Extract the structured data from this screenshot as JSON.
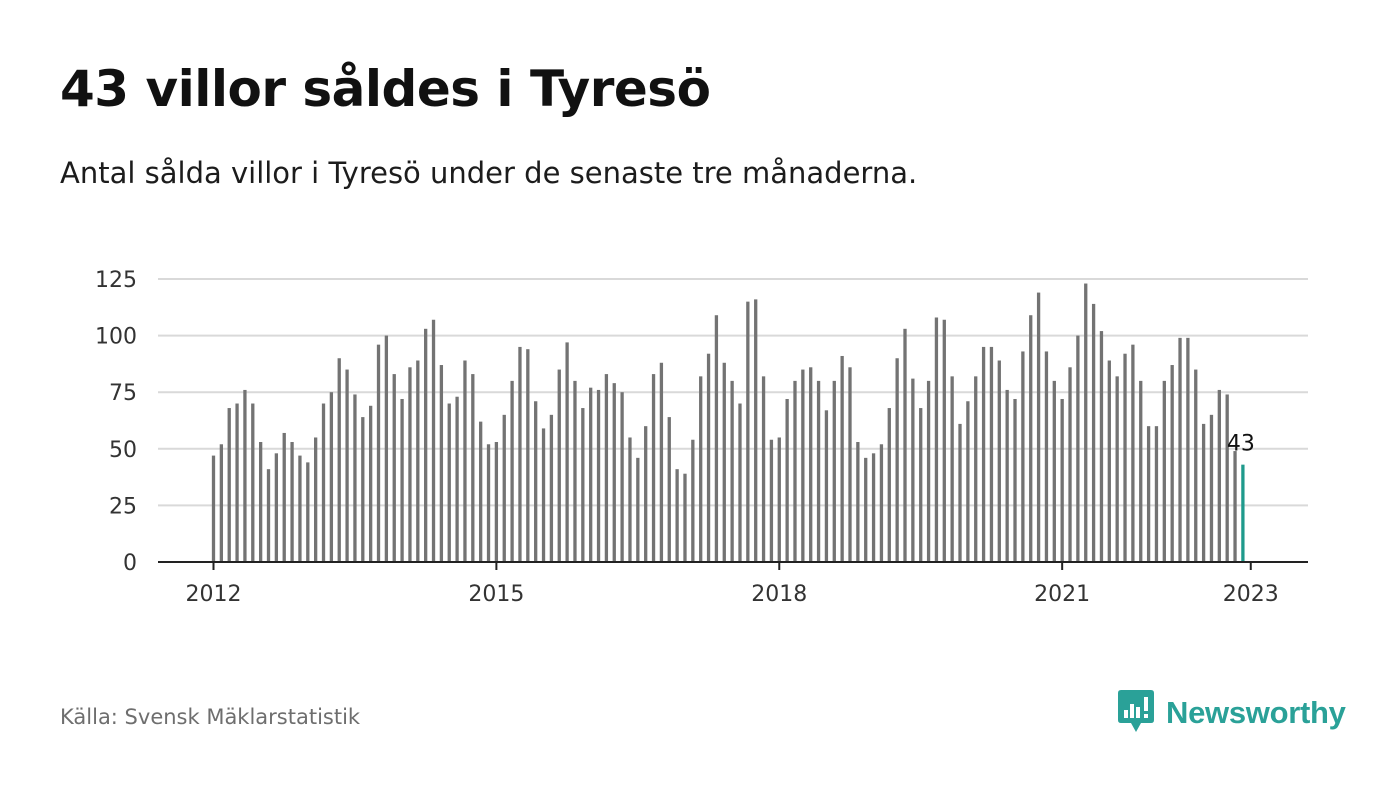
{
  "title": "43 villor såldes i Tyresö",
  "subtitle": "Antal sålda villor i Tyresö under de senaste tre månaderna.",
  "source": "Källa: Svensk Mäklarstatistik",
  "brand": {
    "name": "Newsworthy",
    "icon": "newsworthy-logo-icon",
    "color": "#2aa198"
  },
  "colors": {
    "bar": "#737373",
    "highlight": "#1f9a8c",
    "grid": "#d9d9d9",
    "axis": "#222222"
  },
  "chart_data": {
    "type": "bar",
    "title": "43 villor såldes i Tyresö",
    "subtitle": "Antal sålda villor i Tyresö under de senaste tre månaderna.",
    "xlabel": "",
    "ylabel": "",
    "start": "2012-01",
    "frequency": "monthly",
    "ylim": [
      0,
      125
    ],
    "yticks": [
      0,
      25,
      50,
      75,
      100,
      125
    ],
    "xtick_labels": [
      "2012",
      "2015",
      "2018",
      "2021",
      "2023"
    ],
    "grid": true,
    "highlight_label": "43",
    "values": [
      47,
      52,
      68,
      70,
      76,
      70,
      53,
      41,
      48,
      57,
      53,
      47,
      44,
      55,
      70,
      75,
      90,
      85,
      74,
      64,
      69,
      96,
      100,
      83,
      72,
      86,
      89,
      103,
      107,
      87,
      70,
      73,
      89,
      83,
      62,
      52,
      53,
      65,
      80,
      95,
      94,
      71,
      59,
      65,
      85,
      97,
      80,
      68,
      77,
      76,
      83,
      79,
      75,
      55,
      46,
      60,
      83,
      88,
      64,
      41,
      39,
      54,
      82,
      92,
      109,
      88,
      80,
      70,
      115,
      116,
      82,
      54,
      55,
      72,
      80,
      85,
      86,
      80,
      67,
      80,
      91,
      86,
      53,
      46,
      48,
      52,
      68,
      90,
      103,
      81,
      68,
      80,
      108,
      107,
      82,
      61,
      71,
      82,
      95,
      95,
      89,
      76,
      72,
      93,
      109,
      119,
      93,
      80,
      72,
      86,
      100,
      123,
      114,
      102,
      89,
      82,
      92,
      96,
      80,
      60,
      60,
      80,
      87,
      99,
      99,
      85,
      61,
      65,
      76,
      74,
      49,
      43
    ]
  }
}
